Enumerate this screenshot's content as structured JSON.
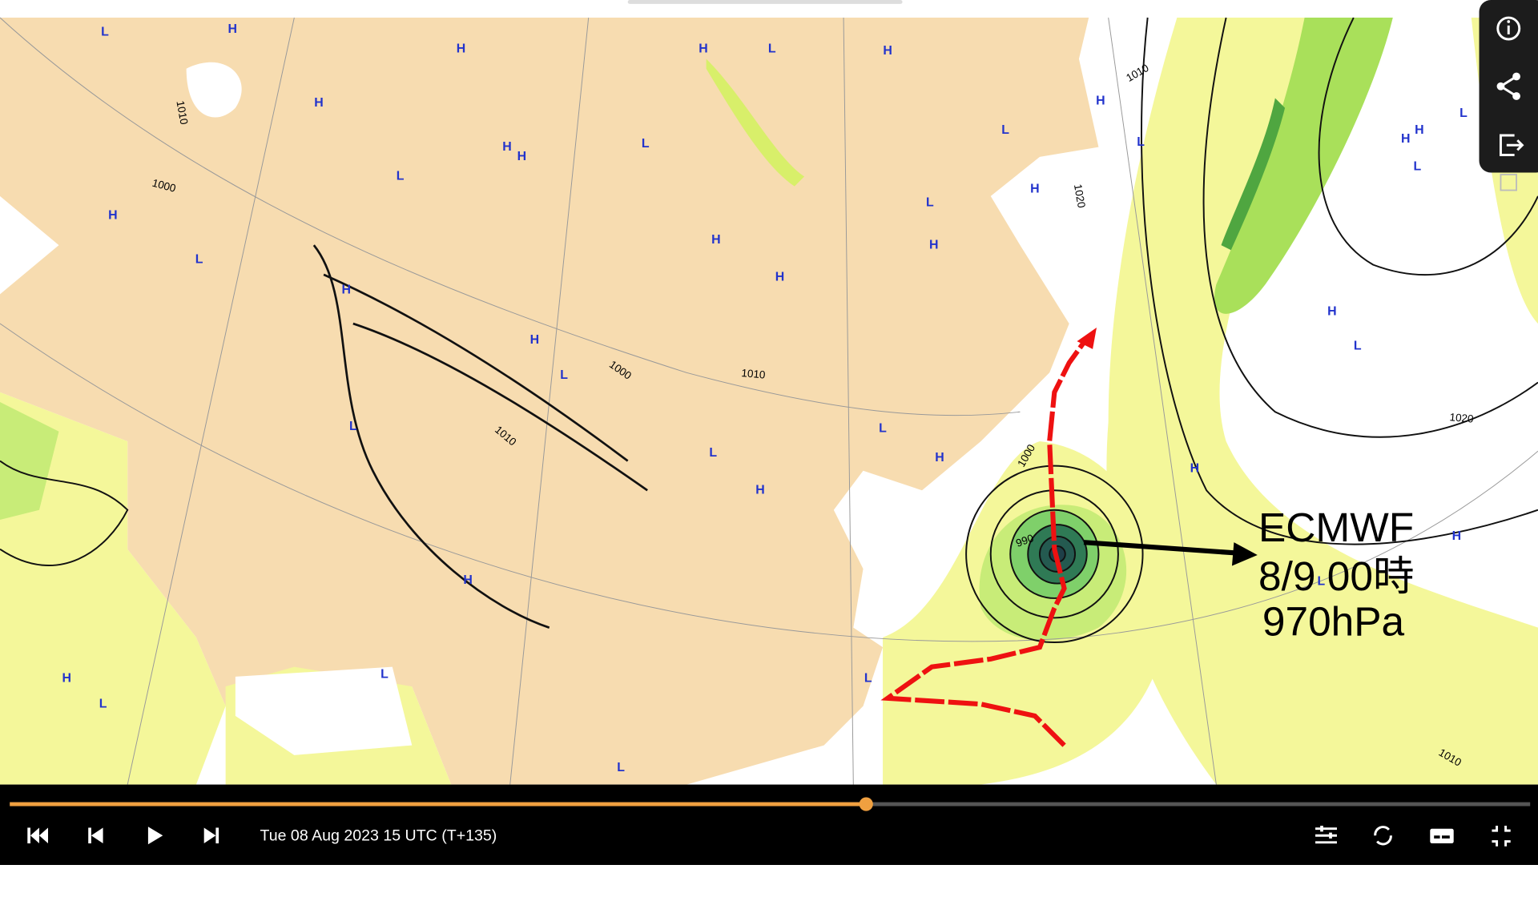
{
  "map": {
    "centers": [
      "L",
      "H",
      "H",
      "H",
      "L",
      "H",
      "H",
      "H",
      "L",
      "L",
      "H",
      "H",
      "L",
      "H",
      "L",
      "H",
      "L",
      "L",
      "H",
      "H",
      "L",
      "H",
      "H",
      "H",
      "H",
      "H",
      "H",
      "L",
      "L",
      "L",
      "L",
      "L",
      "H",
      "H",
      "H",
      "H",
      "H",
      "L",
      "L",
      "H",
      "L",
      "L",
      "L",
      "L"
    ],
    "pressure_labels": [
      "1010",
      "1010",
      "1000",
      "1000",
      "1010",
      "1020",
      "1000",
      "990",
      "1020",
      "1010",
      "1010"
    ]
  },
  "annotation": {
    "model": "ECMWF",
    "time": "8/9 00時",
    "pressure": "970hPa"
  },
  "player": {
    "timestamp": "Tue 08 Aug 2023 15 UTC (T+135)"
  }
}
